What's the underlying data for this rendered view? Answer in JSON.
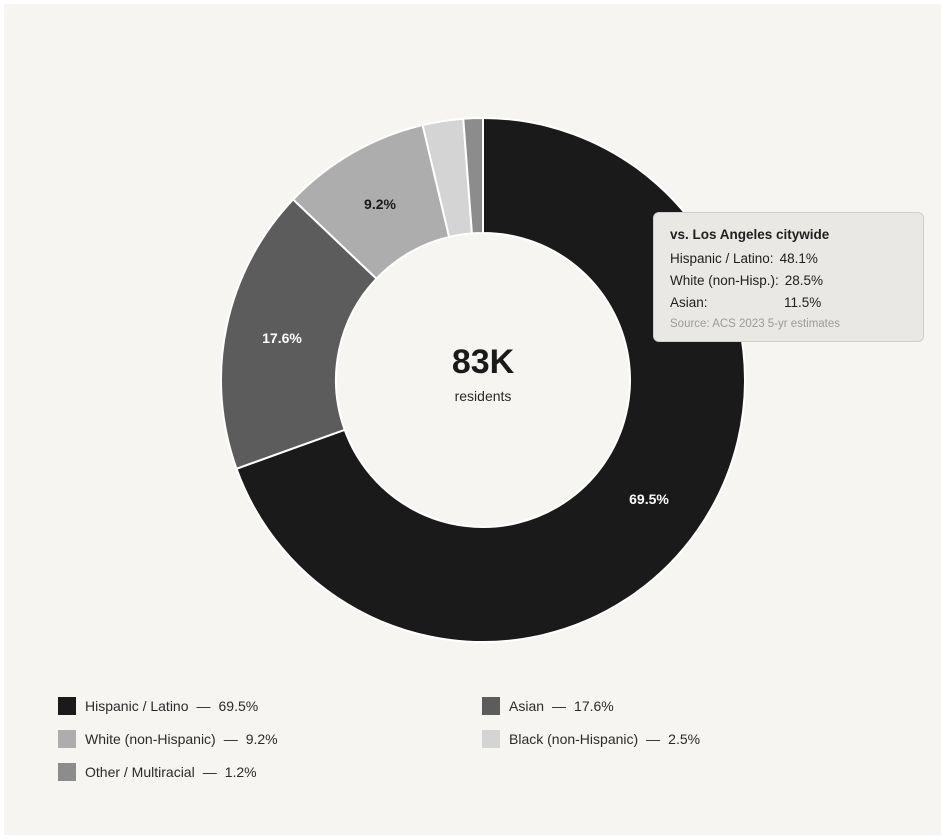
{
  "chart_data": {
    "type": "pie",
    "donut": true,
    "center": {
      "value": "83K",
      "label": "residents"
    },
    "series": [
      {
        "name": "Hispanic / Latino",
        "value": 69.5,
        "label": "69.5%",
        "color": "#1a1a1a"
      },
      {
        "name": "Asian",
        "value": 17.6,
        "label": "17.6%",
        "color": "#5c5c5c"
      },
      {
        "name": "White (non-Hispanic)",
        "value": 9.2,
        "label": "9.2%",
        "color": "#adadad"
      },
      {
        "name": "Black (non-Hispanic)",
        "value": 2.5,
        "label": "2.5%",
        "color": "#d4d4d4"
      },
      {
        "name": "Other / Multiracial",
        "value": 1.2,
        "label": "1.2%",
        "color": "#8c8c8c"
      }
    ],
    "legend": [
      {
        "text": "Hispanic / Latino",
        "value": "69.5%",
        "color": "#1a1a1a"
      },
      {
        "text": "Asian",
        "value": "17.6%",
        "color": "#5c5c5c"
      },
      {
        "text": "White (non-Hispanic)",
        "value": "9.2%",
        "color": "#adadad"
      },
      {
        "text": "Black (non-Hispanic)",
        "value": "2.5%",
        "color": "#d4d4d4"
      },
      {
        "text": "Other / Multiracial",
        "value": "1.2%",
        "color": "#8c8c8c"
      }
    ],
    "legend_separator": "—",
    "legend_placement": "bottom",
    "tooltip": {
      "title": "vs. Los Angeles citywide",
      "rows": [
        {
          "label": "Hispanic / Latino:",
          "value": "48.1%"
        },
        {
          "label": "White (non-Hisp.):",
          "value": "28.5%"
        },
        {
          "label": "Asian:",
          "value": "11.5%"
        }
      ],
      "source": "Source: ACS 2023 5-yr estimates"
    }
  }
}
